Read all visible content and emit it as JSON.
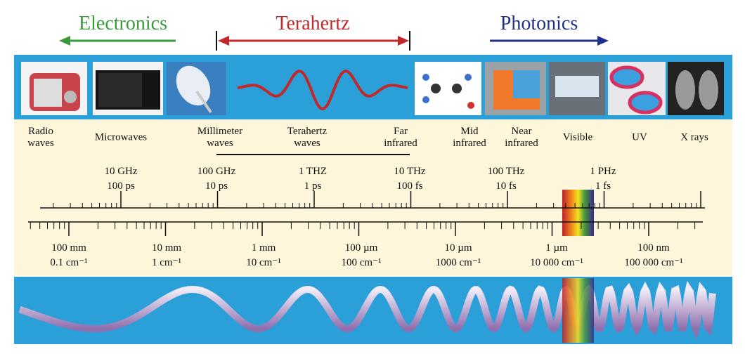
{
  "header": {
    "electronics": "Electronics",
    "terahertz": "Terahertz",
    "photonics": "Photonics"
  },
  "bands": [
    [
      "Radio",
      "waves"
    ],
    [
      "Microwaves"
    ],
    [
      "Millimeter",
      "waves"
    ],
    [
      "Terahertz",
      "waves"
    ],
    [
      "Far",
      "infrared"
    ],
    [
      "Mid",
      "infrared"
    ],
    [
      "Near",
      "infrared"
    ],
    [
      "Visible"
    ],
    [
      "UV"
    ],
    [
      "X rays"
    ]
  ],
  "frequency_scale": [
    [
      "10 GHz",
      "100 ps"
    ],
    [
      "100 GHz",
      "10 ps"
    ],
    [
      "1 THZ",
      "1 ps"
    ],
    [
      "10 THz",
      "100 fs"
    ],
    [
      "100 THz",
      "10 fs"
    ],
    [
      "1 PHz",
      "1 fs"
    ]
  ],
  "wavelength_scale": [
    [
      "100 mm",
      "0.1 cm⁻¹"
    ],
    [
      "10 mm",
      "1 cm⁻¹"
    ],
    [
      "1 mm",
      "10 cm⁻¹"
    ],
    [
      "100 µm",
      "100 cm⁻¹"
    ],
    [
      "10 µm",
      "1000 cm⁻¹"
    ],
    [
      "1 µm",
      "10 000 cm⁻¹"
    ],
    [
      "100 nm",
      "100 000 cm⁻¹"
    ]
  ]
}
